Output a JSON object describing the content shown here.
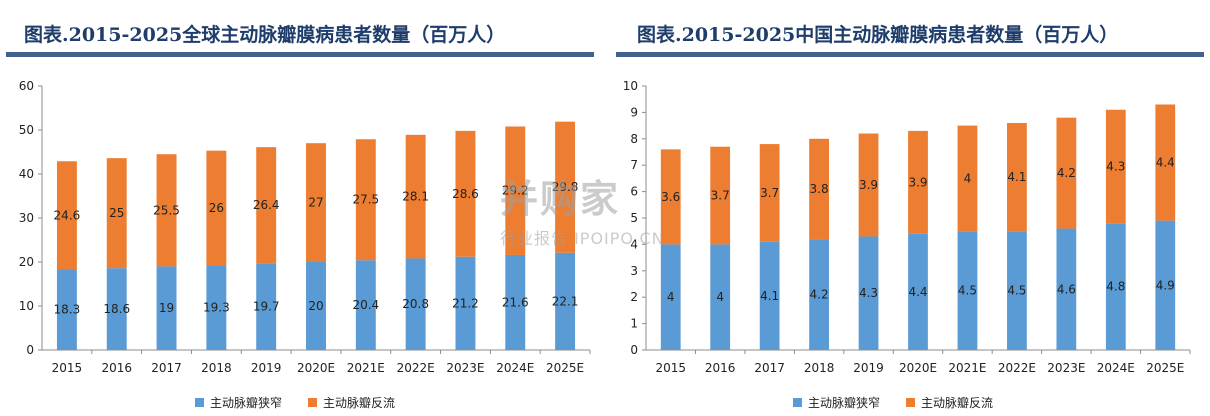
{
  "colors": {
    "stenosis": "#5b9bd5",
    "reflux": "#ed7d31",
    "title": "#1f3d6b",
    "title_bar": "#41628c"
  },
  "watermark": {
    "main": "并购家",
    "sub": "行业报告 IPOIPO.CN"
  },
  "legend": {
    "stenosis": "主动脉瓣狭窄",
    "reflux": "主动脉瓣反流"
  },
  "chart_data": [
    {
      "type": "bar",
      "stacked": true,
      "title": "图表.2015-2025全球主动脉瓣膜病患者数量（百万人）",
      "categories": [
        "2015",
        "2016",
        "2017",
        "2018",
        "2019",
        "2020E",
        "2021E",
        "2022E",
        "2023E",
        "2024E",
        "2025E"
      ],
      "ylim": [
        0,
        60
      ],
      "yticks": [
        0,
        10,
        20,
        30,
        40,
        50,
        60
      ],
      "series": [
        {
          "name": "主动脉瓣狭窄",
          "values": [
            18.3,
            18.6,
            19,
            19.3,
            19.7,
            20,
            20.4,
            20.8,
            21.2,
            21.6,
            22.1
          ]
        },
        {
          "name": "主动脉瓣反流",
          "values": [
            24.6,
            25,
            25.5,
            26,
            26.4,
            27,
            27.5,
            28.1,
            28.6,
            29.2,
            29.8
          ]
        }
      ],
      "legend_position": "bottom",
      "grid": false
    },
    {
      "type": "bar",
      "stacked": true,
      "title": "图表.2015-2025中国主动脉瓣膜病患者数量（百万人）",
      "categories": [
        "2015",
        "2016",
        "2017",
        "2018",
        "2019",
        "2020E",
        "2021E",
        "2022E",
        "2023E",
        "2024E",
        "2025E"
      ],
      "ylim": [
        0,
        10
      ],
      "yticks": [
        0,
        1,
        2,
        3,
        4,
        5,
        6,
        7,
        8,
        9,
        10
      ],
      "series": [
        {
          "name": "主动脉瓣狭窄",
          "values": [
            4,
            4,
            4.1,
            4.2,
            4.3,
            4.4,
            4.5,
            4.5,
            4.6,
            4.8,
            4.9
          ]
        },
        {
          "name": "主动脉瓣反流",
          "values": [
            3.6,
            3.7,
            3.7,
            3.8,
            3.9,
            3.9,
            4,
            4.1,
            4.2,
            4.3,
            4.4
          ]
        }
      ],
      "legend_position": "bottom",
      "grid": false
    }
  ]
}
